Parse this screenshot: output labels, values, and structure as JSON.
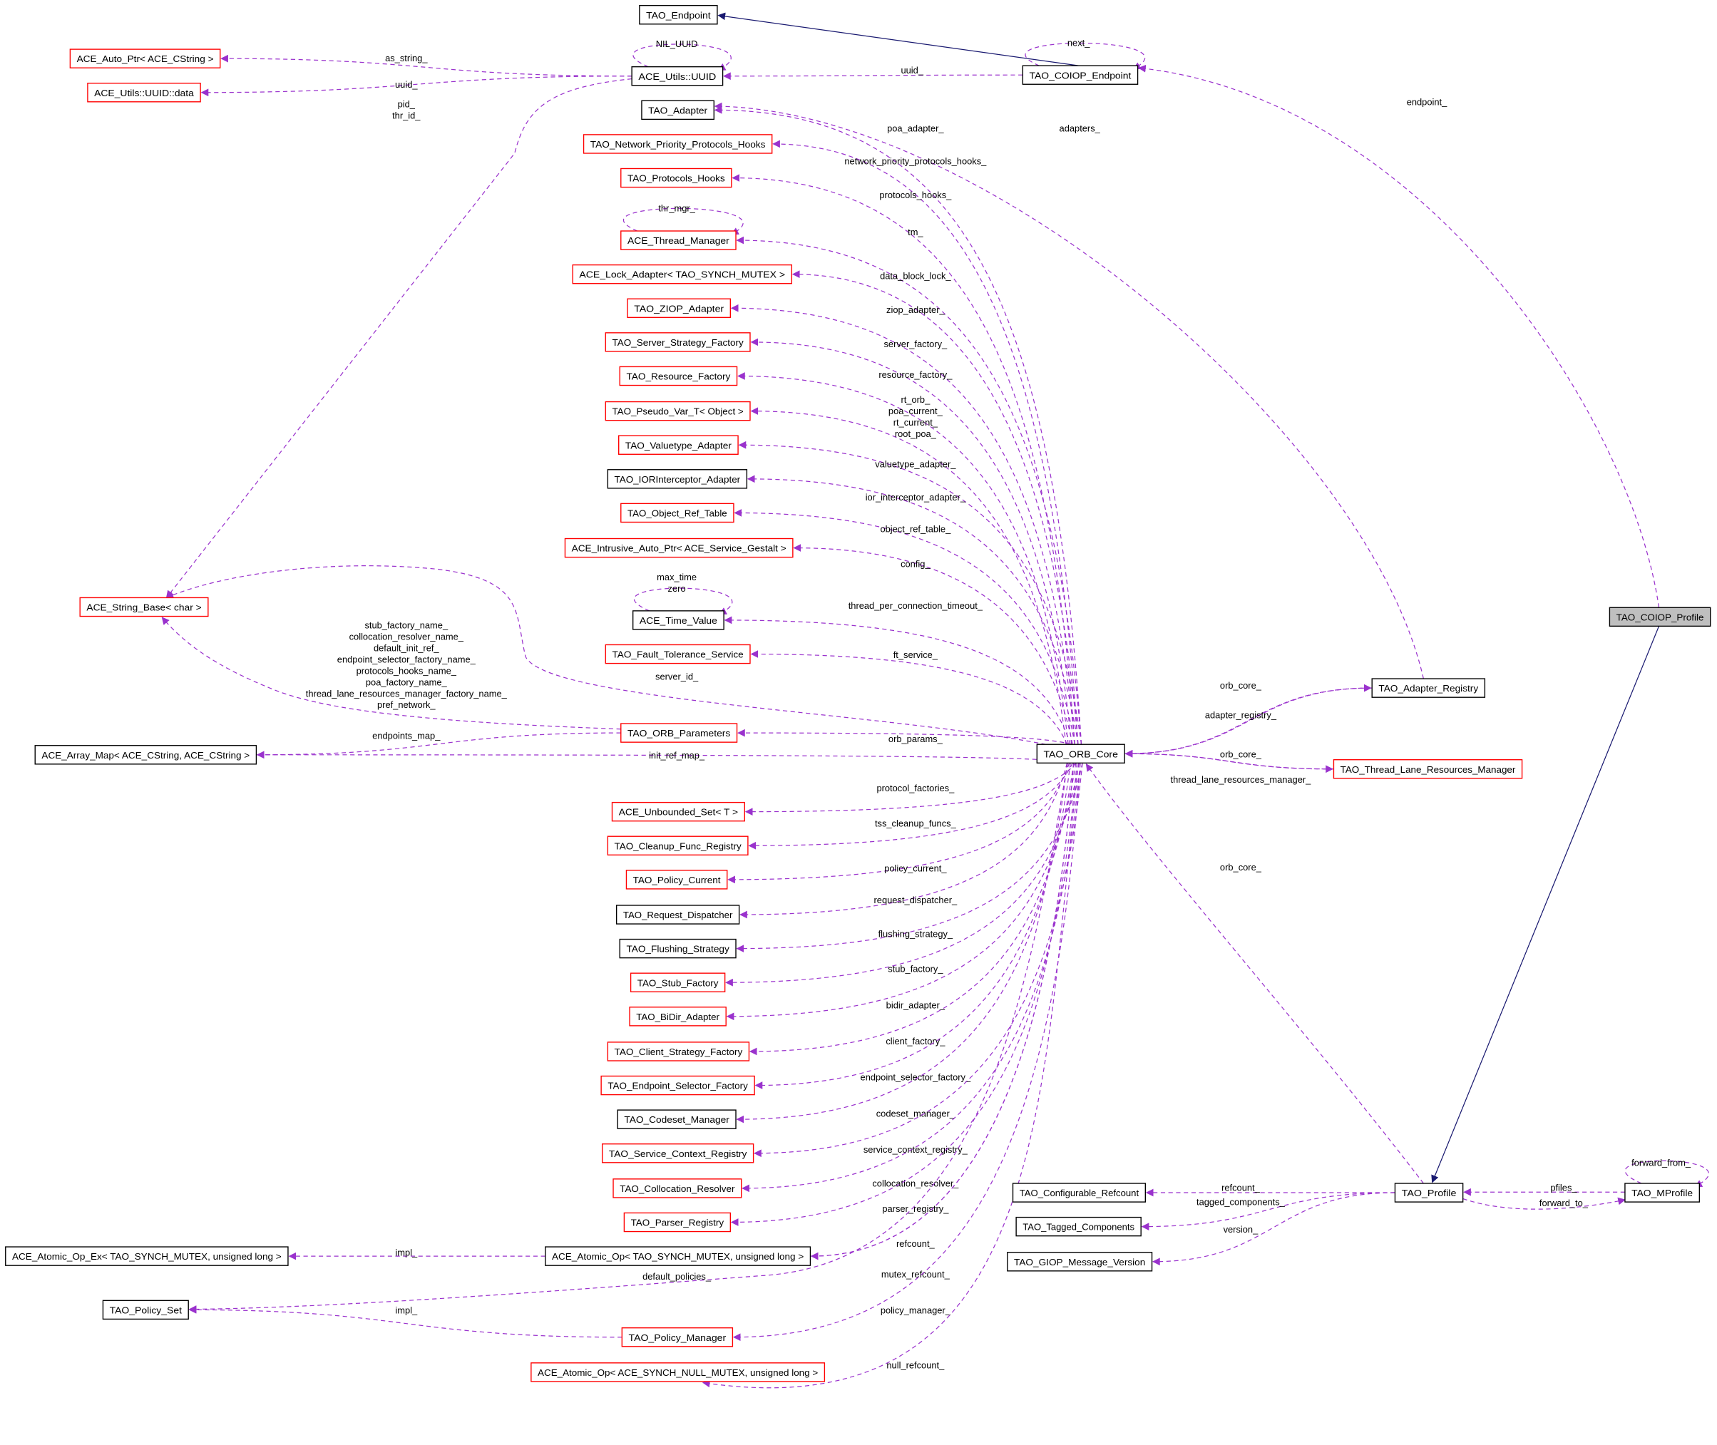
{
  "colors": {
    "usage_edge": "#9a32cd",
    "inheritance_edge": "#191970",
    "documented_border": "#000000",
    "undocumented_border": "#ff0000",
    "focus_fill": "#bfbfbf"
  },
  "nodes": [
    {
      "id": "endpoint",
      "label": "TAO_Endpoint",
      "border": "#000000"
    },
    {
      "id": "autoptr",
      "label": "ACE_Auto_Ptr< ACE_CString >",
      "border": "#ff0000"
    },
    {
      "id": "uuiddata",
      "label": "ACE_Utils::UUID::data",
      "border": "#ff0000"
    },
    {
      "id": "uuid",
      "label": "ACE_Utils::UUID",
      "border": "#000000"
    },
    {
      "id": "coiopep",
      "label": "TAO_COIOP_Endpoint",
      "border": "#000000"
    },
    {
      "id": "adapter",
      "label": "TAO_Adapter",
      "border": "#000000"
    },
    {
      "id": "netprio",
      "label": "TAO_Network_Priority_Protocols_Hooks",
      "border": "#ff0000"
    },
    {
      "id": "protohooks",
      "label": "TAO_Protocols_Hooks",
      "border": "#ff0000"
    },
    {
      "id": "thrmgr",
      "label": "ACE_Thread_Manager",
      "border": "#ff0000"
    },
    {
      "id": "lockad",
      "label": "ACE_Lock_Adapter< TAO_SYNCH_MUTEX >",
      "border": "#ff0000"
    },
    {
      "id": "ziop",
      "label": "TAO_ZIOP_Adapter",
      "border": "#ff0000"
    },
    {
      "id": "ssf",
      "label": "TAO_Server_Strategy_Factory",
      "border": "#ff0000"
    },
    {
      "id": "resf",
      "label": "TAO_Resource_Factory",
      "border": "#ff0000"
    },
    {
      "id": "pseudo",
      "label": "TAO_Pseudo_Var_T< Object >",
      "border": "#ff0000"
    },
    {
      "id": "valuetype",
      "label": "TAO_Valuetype_Adapter",
      "border": "#ff0000"
    },
    {
      "id": "iorint",
      "label": "TAO_IORInterceptor_Adapter",
      "border": "#000000"
    },
    {
      "id": "objref",
      "label": "TAO_Object_Ref_Table",
      "border": "#ff0000"
    },
    {
      "id": "intrusive",
      "label": "ACE_Intrusive_Auto_Ptr< ACE_Service_Gestalt >",
      "border": "#ff0000"
    },
    {
      "id": "strbase",
      "label": "ACE_String_Base< char >",
      "border": "#ff0000"
    },
    {
      "id": "timeval",
      "label": "ACE_Time_Value",
      "border": "#000000"
    },
    {
      "id": "ft",
      "label": "TAO_Fault_Tolerance_Service",
      "border": "#ff0000"
    },
    {
      "id": "orbparams",
      "label": "TAO_ORB_Parameters",
      "border": "#ff0000"
    },
    {
      "id": "arraymap",
      "label": "ACE_Array_Map< ACE_CString, ACE_CString >",
      "border": "#000000"
    },
    {
      "id": "orbcore",
      "label": "TAO_ORB_Core",
      "border": "#000000"
    },
    {
      "id": "adreg",
      "label": "TAO_Adapter_Registry",
      "border": "#000000"
    },
    {
      "id": "tlrm",
      "label": "TAO_Thread_Lane_Resources_Manager",
      "border": "#ff0000"
    },
    {
      "id": "coiopprof",
      "label": "TAO_COIOP_Profile",
      "border": "#000000",
      "fill": "#bfbfbf"
    },
    {
      "id": "unbset",
      "label": "ACE_Unbounded_Set< T >",
      "border": "#ff0000"
    },
    {
      "id": "cleanup",
      "label": "TAO_Cleanup_Func_Registry",
      "border": "#ff0000"
    },
    {
      "id": "polcur",
      "label": "TAO_Policy_Current",
      "border": "#ff0000"
    },
    {
      "id": "reqdisp",
      "label": "TAO_Request_Dispatcher",
      "border": "#000000"
    },
    {
      "id": "flush",
      "label": "TAO_Flushing_Strategy",
      "border": "#000000"
    },
    {
      "id": "stubf",
      "label": "TAO_Stub_Factory",
      "border": "#ff0000"
    },
    {
      "id": "bidir",
      "label": "TAO_BiDir_Adapter",
      "border": "#ff0000"
    },
    {
      "id": "csf",
      "label": "TAO_Client_Strategy_Factory",
      "border": "#ff0000"
    },
    {
      "id": "esf",
      "label": "TAO_Endpoint_Selector_Factory",
      "border": "#ff0000"
    },
    {
      "id": "codeset",
      "label": "TAO_Codeset_Manager",
      "border": "#000000"
    },
    {
      "id": "scr",
      "label": "TAO_Service_Context_Registry",
      "border": "#ff0000"
    },
    {
      "id": "colloc",
      "label": "TAO_Collocation_Resolver",
      "border": "#ff0000"
    },
    {
      "id": "parser",
      "label": "TAO_Parser_Registry",
      "border": "#ff0000"
    },
    {
      "id": "atomicex",
      "label": "ACE_Atomic_Op_Ex< TAO_SYNCH_MUTEX, unsigned long >",
      "border": "#000000"
    },
    {
      "id": "atomic",
      "label": "ACE_Atomic_Op< TAO_SYNCH_MUTEX, unsigned long >",
      "border": "#000000"
    },
    {
      "id": "polset",
      "label": "TAO_Policy_Set",
      "border": "#000000"
    },
    {
      "id": "polmgr",
      "label": "TAO_Policy_Manager",
      "border": "#ff0000"
    },
    {
      "id": "atomicnull",
      "label": "ACE_Atomic_Op< ACE_SYNCH_NULL_MUTEX, unsigned long >",
      "border": "#ff0000"
    },
    {
      "id": "confref",
      "label": "TAO_Configurable_Refcount",
      "border": "#000000"
    },
    {
      "id": "tagged",
      "label": "TAO_Tagged_Components",
      "border": "#000000"
    },
    {
      "id": "giop",
      "label": "TAO_GIOP_Message_Version",
      "border": "#000000"
    },
    {
      "id": "profile",
      "label": "TAO_Profile",
      "border": "#000000"
    },
    {
      "id": "mprofile",
      "label": "TAO_MProfile",
      "border": "#000000"
    }
  ],
  "edges": [
    {
      "from": "coiopep",
      "to": "endpoint",
      "kind": "inheritance",
      "labels": []
    },
    {
      "from": "coiopprof",
      "to": "profile",
      "kind": "inheritance",
      "labels": []
    },
    {
      "from": "coiopep",
      "to": "uuid",
      "kind": "usage",
      "labels": [
        "uuid_"
      ]
    },
    {
      "from": "coiopep",
      "to": "coiopep",
      "kind": "usage",
      "labels": [
        "next_"
      ]
    },
    {
      "from": "coiopprof",
      "to": "coiopep",
      "kind": "usage",
      "labels": [
        "endpoint_"
      ]
    },
    {
      "from": "uuid",
      "to": "autoptr",
      "kind": "usage",
      "labels": [
        "as_string_"
      ]
    },
    {
      "from": "uuid",
      "to": "uuiddata",
      "kind": "usage",
      "labels": [
        "uuid_"
      ]
    },
    {
      "from": "uuid",
      "to": "uuid",
      "kind": "usage",
      "labels": [
        "NIL_UUID"
      ]
    },
    {
      "from": "uuid",
      "to": "strbase",
      "kind": "usage",
      "labels": [
        "pid_",
        "thr_id_"
      ]
    },
    {
      "from": "adreg",
      "to": "adapter",
      "kind": "usage",
      "labels": [
        "adapters_"
      ]
    },
    {
      "from": "orbcore",
      "to": "adapter",
      "kind": "usage",
      "labels": [
        "poa_adapter_"
      ]
    },
    {
      "from": "orbcore",
      "to": "netprio",
      "kind": "usage",
      "labels": [
        "network_priority_protocols_hooks_"
      ]
    },
    {
      "from": "orbcore",
      "to": "protohooks",
      "kind": "usage",
      "labels": [
        "protocols_hooks_"
      ]
    },
    {
      "from": "orbcore",
      "to": "thrmgr",
      "kind": "usage",
      "labels": [
        "tm_"
      ]
    },
    {
      "from": "thrmgr",
      "to": "thrmgr",
      "kind": "usage",
      "labels": [
        "thr_mgr_"
      ]
    },
    {
      "from": "orbcore",
      "to": "lockad",
      "kind": "usage",
      "labels": [
        "data_block_lock_"
      ]
    },
    {
      "from": "orbcore",
      "to": "ziop",
      "kind": "usage",
      "labels": [
        "ziop_adapter_"
      ]
    },
    {
      "from": "orbcore",
      "to": "ssf",
      "kind": "usage",
      "labels": [
        "server_factory_"
      ]
    },
    {
      "from": "orbcore",
      "to": "resf",
      "kind": "usage",
      "labels": [
        "resource_factory_"
      ]
    },
    {
      "from": "orbcore",
      "to": "pseudo",
      "kind": "usage",
      "labels": [
        "rt_orb_",
        "poa_current_",
        "rt_current_",
        "root_poa_"
      ]
    },
    {
      "from": "orbcore",
      "to": "valuetype",
      "kind": "usage",
      "labels": [
        "valuetype_adapter_"
      ]
    },
    {
      "from": "orbcore",
      "to": "iorint",
      "kind": "usage",
      "labels": [
        "ior_interceptor_adapter_"
      ]
    },
    {
      "from": "orbcore",
      "to": "objref",
      "kind": "usage",
      "labels": [
        "object_ref_table_"
      ]
    },
    {
      "from": "orbcore",
      "to": "intrusive",
      "kind": "usage",
      "labels": [
        "config_"
      ]
    },
    {
      "from": "orbcore",
      "to": "timeval",
      "kind": "usage",
      "labels": [
        "thread_per_connection_timeout_"
      ]
    },
    {
      "from": "timeval",
      "to": "timeval",
      "kind": "usage",
      "labels": [
        "max_time",
        "zero"
      ]
    },
    {
      "from": "orbcore",
      "to": "ft",
      "kind": "usage",
      "labels": [
        "ft_service_"
      ]
    },
    {
      "from": "orbcore",
      "to": "strbase",
      "kind": "usage",
      "labels": [
        "server_id_"
      ]
    },
    {
      "from": "orbparams",
      "to": "strbase",
      "kind": "usage",
      "labels": [
        "stub_factory_name_",
        "collocation_resolver_name_",
        "default_init_ref_",
        "endpoint_selector_factory_name_",
        "protocols_hooks_name_",
        "poa_factory_name_",
        "thread_lane_resources_manager_factory_name_",
        "pref_network_"
      ]
    },
    {
      "from": "orbparams",
      "to": "arraymap",
      "kind": "usage",
      "labels": [
        "endpoints_map_"
      ]
    },
    {
      "from": "orbcore",
      "to": "orbparams",
      "kind": "usage",
      "labels": [
        "orb_params_"
      ]
    },
    {
      "from": "orbcore",
      "to": "arraymap",
      "kind": "usage",
      "labels": [
        "init_ref_map_"
      ]
    },
    {
      "from": "adreg",
      "to": "orbcore",
      "kind": "usage",
      "labels": [
        "orb_core_"
      ]
    },
    {
      "from": "orbcore",
      "to": "adreg",
      "kind": "usage",
      "labels": [
        "adapter_registry_"
      ]
    },
    {
      "from": "tlrm",
      "to": "orbcore",
      "kind": "usage",
      "labels": [
        "orb_core_"
      ]
    },
    {
      "from": "orbcore",
      "to": "tlrm",
      "kind": "usage",
      "labels": [
        "thread_lane_resources_manager_"
      ]
    },
    {
      "from": "profile",
      "to": "orbcore",
      "kind": "usage",
      "labels": [
        "orb_core_"
      ]
    },
    {
      "from": "orbcore",
      "to": "unbset",
      "kind": "usage",
      "labels": [
        "protocol_factories_"
      ]
    },
    {
      "from": "orbcore",
      "to": "cleanup",
      "kind": "usage",
      "labels": [
        "tss_cleanup_funcs_"
      ]
    },
    {
      "from": "orbcore",
      "to": "polcur",
      "kind": "usage",
      "labels": [
        "policy_current_"
      ]
    },
    {
      "from": "orbcore",
      "to": "reqdisp",
      "kind": "usage",
      "labels": [
        "request_dispatcher_"
      ]
    },
    {
      "from": "orbcore",
      "to": "flush",
      "kind": "usage",
      "labels": [
        "flushing_strategy_"
      ]
    },
    {
      "from": "orbcore",
      "to": "stubf",
      "kind": "usage",
      "labels": [
        "stub_factory_"
      ]
    },
    {
      "from": "orbcore",
      "to": "bidir",
      "kind": "usage",
      "labels": [
        "bidir_adapter_"
      ]
    },
    {
      "from": "orbcore",
      "to": "csf",
      "kind": "usage",
      "labels": [
        "client_factory_"
      ]
    },
    {
      "from": "orbcore",
      "to": "esf",
      "kind": "usage",
      "labels": [
        "endpoint_selector_factory_"
      ]
    },
    {
      "from": "orbcore",
      "to": "codeset",
      "kind": "usage",
      "labels": [
        "codeset_manager_"
      ]
    },
    {
      "from": "orbcore",
      "to": "scr",
      "kind": "usage",
      "labels": [
        "service_context_registry_"
      ]
    },
    {
      "from": "orbcore",
      "to": "colloc",
      "kind": "usage",
      "labels": [
        "collocation_resolver_"
      ]
    },
    {
      "from": "orbcore",
      "to": "parser",
      "kind": "usage",
      "labels": [
        "parser_registry_"
      ]
    },
    {
      "from": "orbcore",
      "to": "atomic",
      "kind": "usage",
      "labels": [
        "refcount_"
      ]
    },
    {
      "from": "orbcore",
      "to": "atomic",
      "kind": "usage",
      "labels": [
        "mutex_refcount_"
      ]
    },
    {
      "from": "atomic",
      "to": "atomicex",
      "kind": "usage",
      "labels": [
        "impl_"
      ]
    },
    {
      "from": "orbcore",
      "to": "polset",
      "kind": "usage",
      "labels": [
        "default_policies_"
      ]
    },
    {
      "from": "polmgr",
      "to": "polset",
      "kind": "usage",
      "labels": [
        "impl_"
      ]
    },
    {
      "from": "orbcore",
      "to": "polmgr",
      "kind": "usage",
      "labels": [
        "policy_manager_"
      ]
    },
    {
      "from": "orbcore",
      "to": "atomicnull",
      "kind": "usage",
      "labels": [
        "null_refcount_"
      ]
    },
    {
      "from": "profile",
      "to": "confref",
      "kind": "usage",
      "labels": [
        "refcount_"
      ]
    },
    {
      "from": "profile",
      "to": "tagged",
      "kind": "usage",
      "labels": [
        "tagged_components_"
      ]
    },
    {
      "from": "profile",
      "to": "giop",
      "kind": "usage",
      "labels": [
        "version_"
      ]
    },
    {
      "from": "mprofile",
      "to": "profile",
      "kind": "usage",
      "labels": [
        "pfiles_"
      ]
    },
    {
      "from": "profile",
      "to": "mprofile",
      "kind": "usage",
      "labels": [
        "forward_to_"
      ]
    },
    {
      "from": "mprofile",
      "to": "mprofile",
      "kind": "usage",
      "labels": [
        "forward_from_"
      ]
    }
  ]
}
